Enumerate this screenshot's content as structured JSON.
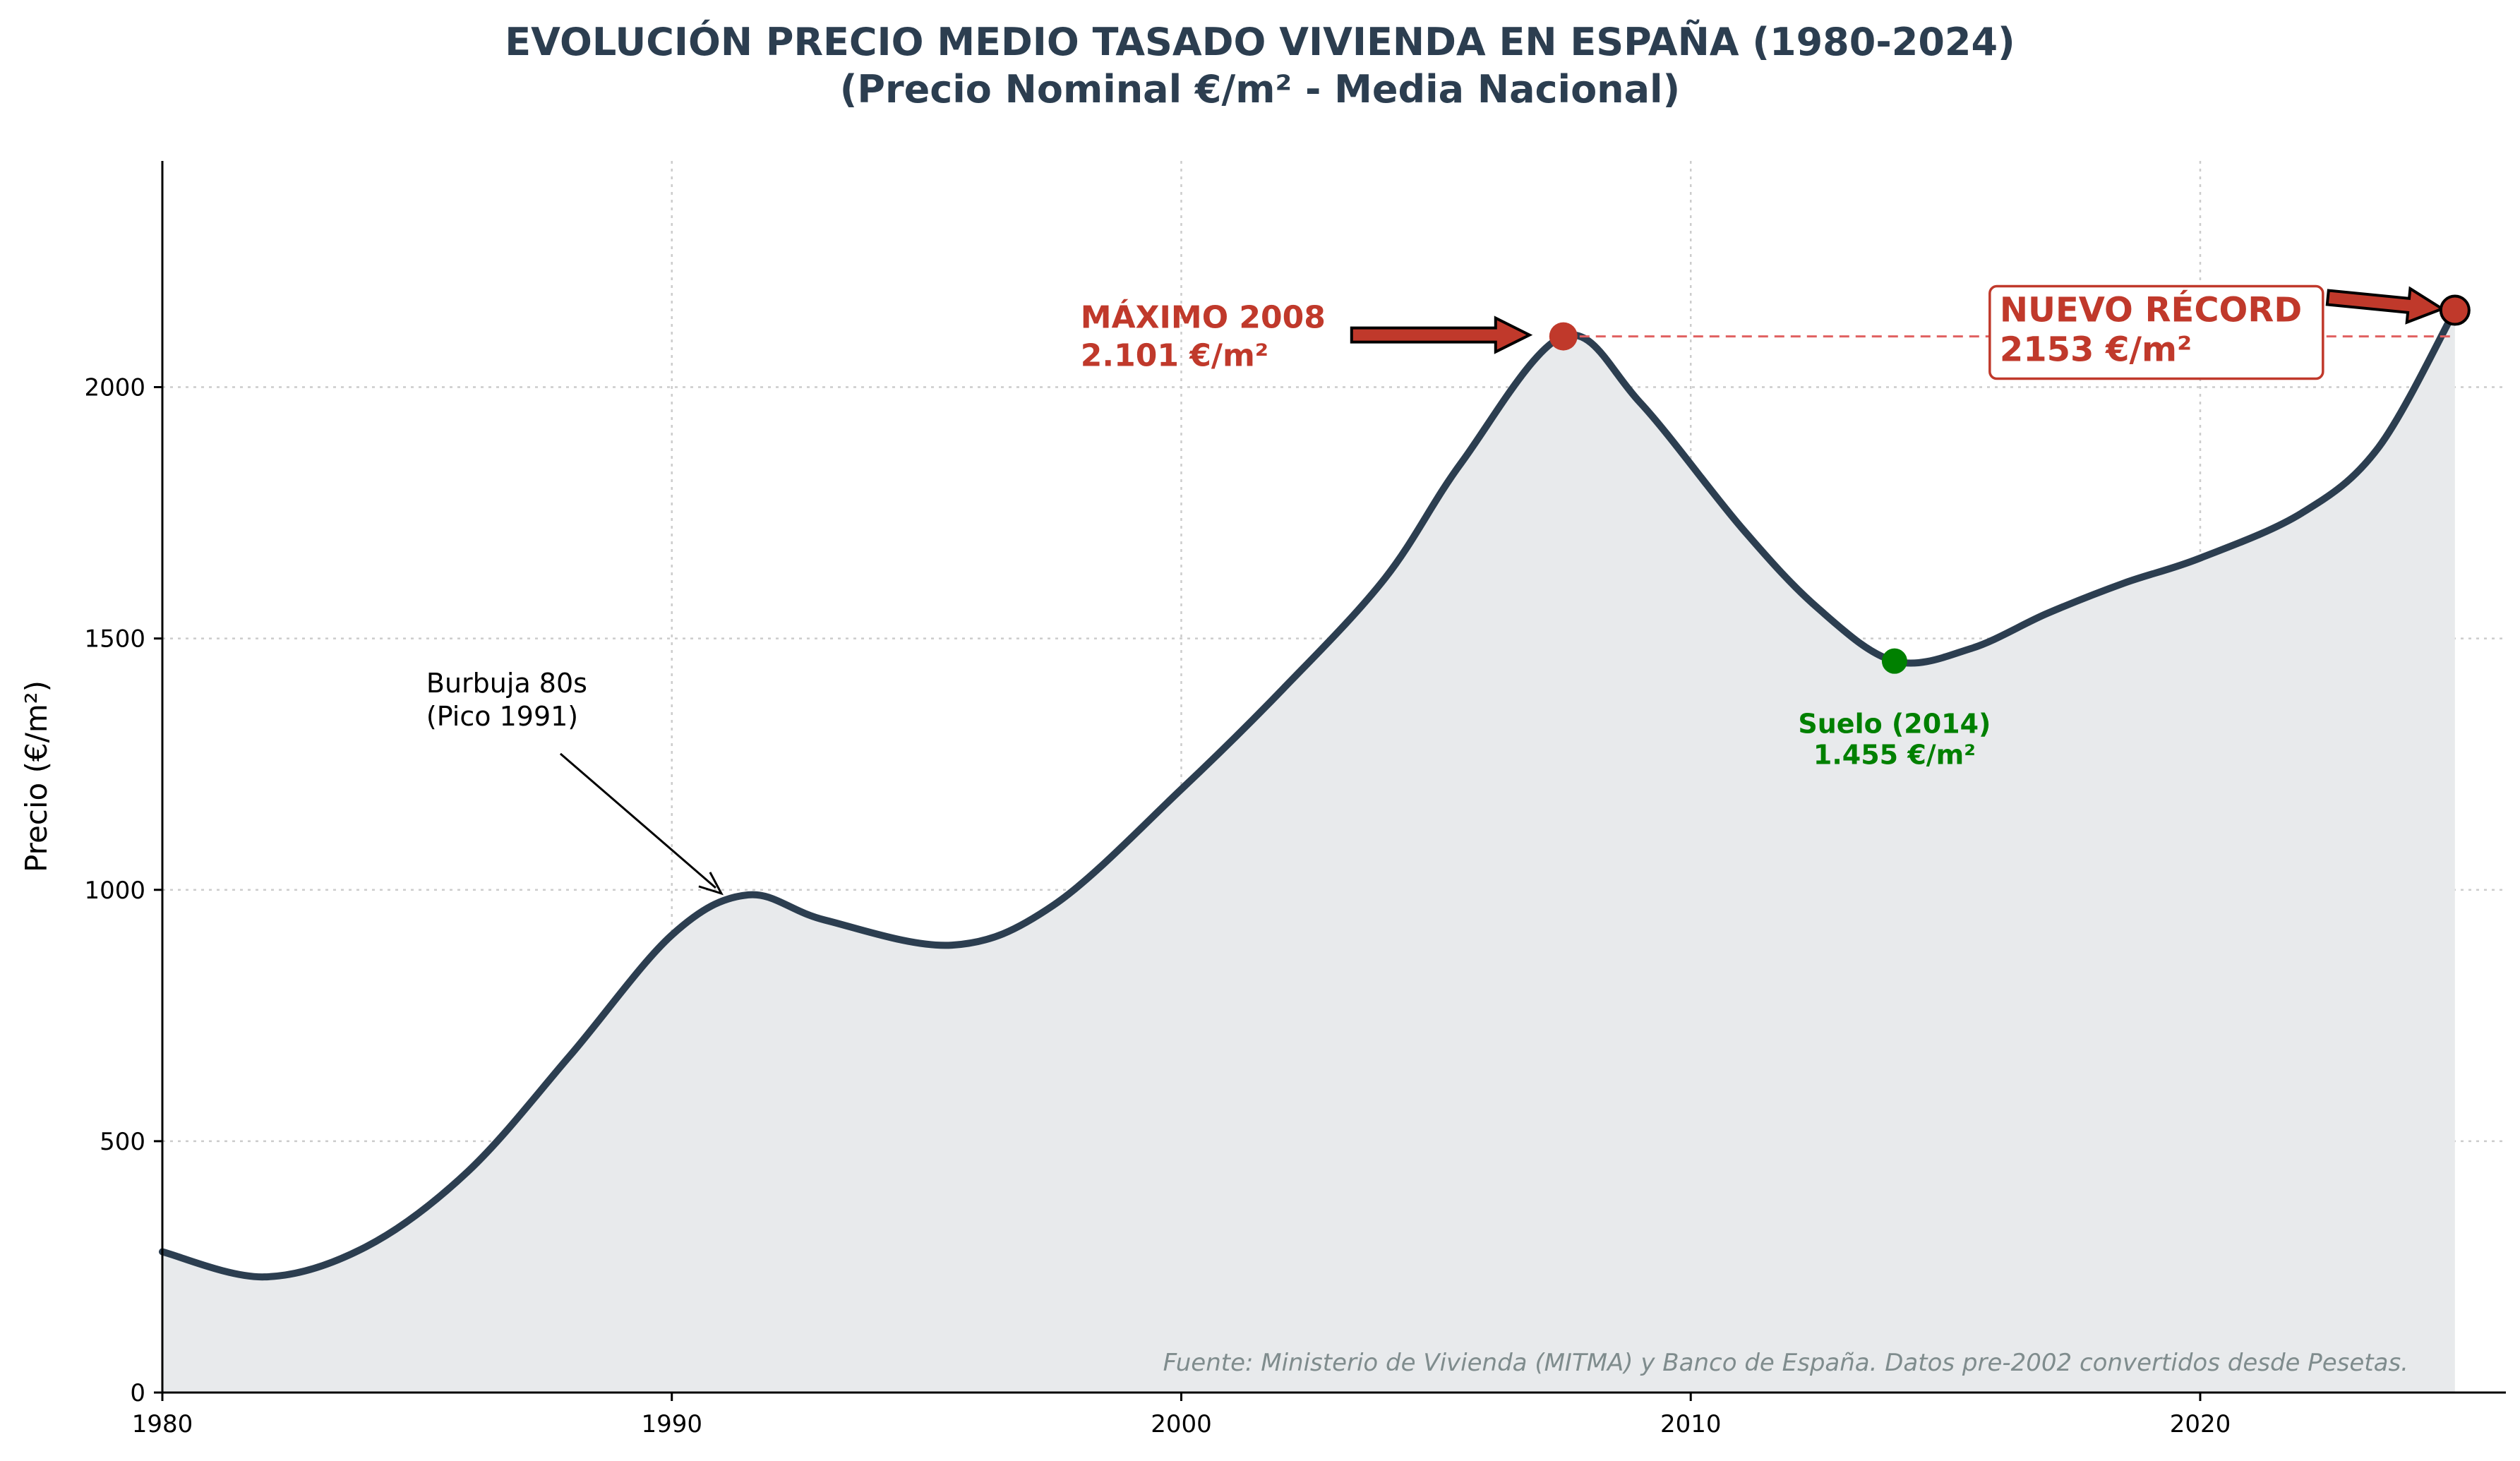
{
  "chart_data": {
    "type": "area",
    "title": "EVOLUCIÓN PRECIO MEDIO TASADO VIVIENDA EN ESPAÑA (1980-2024)",
    "subtitle": "(Precio Nominal €/m² - Media Nacional)",
    "xlabel": "",
    "ylabel": "Precio (€/m²)",
    "xlim": [
      1980,
      2026
    ],
    "ylim": [
      0,
      2450
    ],
    "xticks": [
      1980,
      1990,
      2000,
      2010,
      2020
    ],
    "yticks": [
      0,
      500,
      1000,
      1500,
      2000
    ],
    "grid": true,
    "colors": {
      "line": "#2c3e50",
      "fill": "#e8eaec",
      "max": "#c0392b",
      "min": "#008000",
      "record": "#c0392b"
    },
    "series": [
      {
        "x": [
          1980,
          1982,
          1984,
          1986,
          1988,
          1990,
          1991.5,
          1993,
          1995.5,
          1997.5,
          2000,
          2002,
          2004,
          2005.5,
          2007.5,
          2009,
          2011,
          2012.5,
          2014,
          2015.5,
          2017,
          2018.5,
          2020,
          2022,
          2023.5,
          2025
        ],
        "values": [
          280,
          230,
          290,
          440,
          670,
          910,
          990,
          940,
          890,
          970,
          1200,
          1400,
          1620,
          1850,
          2101,
          1970,
          1720,
          1560,
          1455,
          1480,
          1550,
          1610,
          1660,
          1750,
          1880,
          2153
        ]
      }
    ],
    "annotations": {
      "max": {
        "x": 2007.5,
        "y": 2101,
        "line1": "MÁXIMO 2008",
        "line2": "2.101 €/m²"
      },
      "min": {
        "x": 2014,
        "y": 1455,
        "line1": "Suelo (2014)",
        "line2": "1.455 €/m²"
      },
      "bubble": {
        "x": 1991,
        "y": 990,
        "line1": "Burbuja 80s",
        "line2": "(Pico 1991)"
      },
      "record": {
        "x": 2025,
        "y": 2153,
        "line1": "NUEVO RÉCORD",
        "line2": "2153 €/m²"
      },
      "source": "Fuente: Ministerio de Vivienda (MITMA) y Banco de España. Datos pre-2002 convertidos desde Pesetas."
    }
  }
}
